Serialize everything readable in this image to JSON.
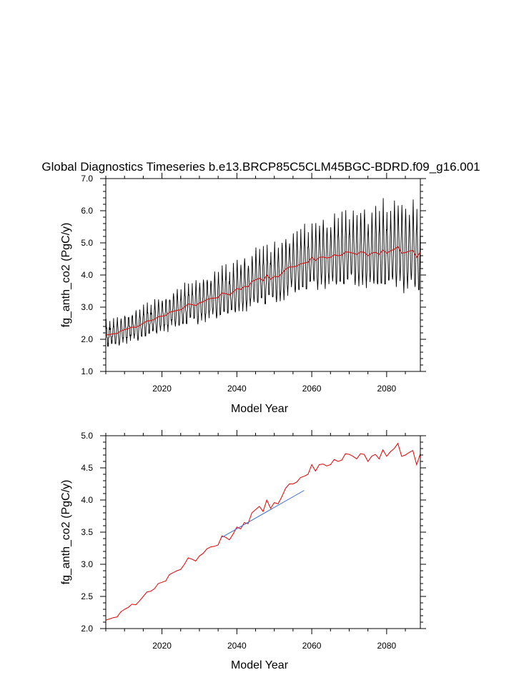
{
  "figure_title": "Global Diagnostics Timeseries b.e13.BRCP85C5CLM45BGC-BDRD.f09_g16.001",
  "colors": {
    "monthly": "#000000",
    "annual": "#e60000",
    "trend": "#3a6fd8",
    "axes": "#000000"
  },
  "chart_data": [
    {
      "type": "line",
      "title": "Global Diagnostics Timeseries b.e13.BRCP85C5CLM45BGC-BDRD.f09_g16.001",
      "xlabel": "Model Year",
      "ylabel": "fg_anth_co2 (PgC/y)",
      "xlim": [
        2005,
        2089
      ],
      "ylim": [
        1.0,
        7.0
      ],
      "x_ticks": [
        2020,
        2040,
        2060,
        2080
      ],
      "x_tick_labels": [
        "2020",
        "2040",
        "2060",
        "2080"
      ],
      "y_ticks": [
        1.0,
        2.0,
        3.0,
        4.0,
        5.0,
        6.0,
        7.0
      ],
      "y_tick_labels": [
        "1.0",
        "2.0",
        "3.0",
        "4.0",
        "5.0",
        "6.0",
        "7.0"
      ],
      "series": [
        {
          "name": "monthly",
          "kind": "seasonal-oscillation",
          "color": "#000000",
          "start_year": 2005,
          "end_year": 2089,
          "seasonal_amplitude": {
            "years": [
              2005,
              2020,
              2040,
              2060,
              2075,
              2089
            ],
            "amplitude": [
              0.3,
              0.4,
              0.62,
              0.78,
              0.95,
              1.1
            ]
          }
        },
        {
          "name": "annual mean",
          "color": "#e60000",
          "x": [
            2005,
            2006,
            2007,
            2008,
            2009,
            2010,
            2011,
            2012,
            2013,
            2014,
            2015,
            2016,
            2017,
            2018,
            2019,
            2020,
            2021,
            2022,
            2023,
            2024,
            2025,
            2026,
            2027,
            2028,
            2029,
            2030,
            2031,
            2032,
            2033,
            2034,
            2035,
            2036,
            2037,
            2038,
            2039,
            2040,
            2041,
            2042,
            2043,
            2044,
            2045,
            2046,
            2047,
            2048,
            2049,
            2050,
            2051,
            2052,
            2053,
            2054,
            2055,
            2056,
            2057,
            2058,
            2059,
            2060,
            2061,
            2062,
            2063,
            2064,
            2065,
            2066,
            2067,
            2068,
            2069,
            2070,
            2071,
            2072,
            2073,
            2074,
            2075,
            2076,
            2077,
            2078,
            2079,
            2080,
            2081,
            2082,
            2083,
            2084,
            2085,
            2086,
            2087,
            2088,
            2089
          ],
          "values": [
            2.13,
            2.15,
            2.17,
            2.18,
            2.26,
            2.3,
            2.33,
            2.38,
            2.37,
            2.43,
            2.5,
            2.57,
            2.58,
            2.62,
            2.7,
            2.72,
            2.74,
            2.84,
            2.87,
            2.9,
            2.92,
            3.0,
            3.1,
            3.08,
            3.05,
            3.13,
            3.17,
            3.24,
            3.27,
            3.28,
            3.3,
            3.44,
            3.42,
            3.38,
            3.47,
            3.58,
            3.55,
            3.65,
            3.63,
            3.8,
            3.85,
            3.9,
            3.82,
            4.0,
            3.87,
            3.96,
            3.94,
            4.05,
            4.18,
            4.25,
            4.25,
            4.28,
            4.35,
            4.37,
            4.4,
            4.55,
            4.45,
            4.55,
            4.56,
            4.53,
            4.55,
            4.63,
            4.6,
            4.62,
            4.72,
            4.71,
            4.68,
            4.64,
            4.72,
            4.71,
            4.6,
            4.68,
            4.71,
            4.64,
            4.78,
            4.68,
            4.75,
            4.8,
            4.88,
            4.68,
            4.7,
            4.74,
            4.77,
            4.55,
            4.72
          ]
        }
      ]
    },
    {
      "type": "line",
      "xlabel": "Model Year",
      "ylabel": "fg_anth_co2 (PgC/y)",
      "xlim": [
        2005,
        2089
      ],
      "ylim": [
        2.0,
        5.0
      ],
      "x_ticks": [
        2020,
        2040,
        2060,
        2080
      ],
      "x_tick_labels": [
        "2020",
        "2040",
        "2060",
        "2080"
      ],
      "y_ticks": [
        2.0,
        2.5,
        3.0,
        3.5,
        4.0,
        4.5,
        5.0
      ],
      "y_tick_labels": [
        "2.0",
        "2.5",
        "3.0",
        "3.5",
        "4.0",
        "4.5",
        "5.0"
      ],
      "series": [
        {
          "name": "annual mean",
          "color": "#e60000",
          "x": [
            2005,
            2006,
            2007,
            2008,
            2009,
            2010,
            2011,
            2012,
            2013,
            2014,
            2015,
            2016,
            2017,
            2018,
            2019,
            2020,
            2021,
            2022,
            2023,
            2024,
            2025,
            2026,
            2027,
            2028,
            2029,
            2030,
            2031,
            2032,
            2033,
            2034,
            2035,
            2036,
            2037,
            2038,
            2039,
            2040,
            2041,
            2042,
            2043,
            2044,
            2045,
            2046,
            2047,
            2048,
            2049,
            2050,
            2051,
            2052,
            2053,
            2054,
            2055,
            2056,
            2057,
            2058,
            2059,
            2060,
            2061,
            2062,
            2063,
            2064,
            2065,
            2066,
            2067,
            2068,
            2069,
            2070,
            2071,
            2072,
            2073,
            2074,
            2075,
            2076,
            2077,
            2078,
            2079,
            2080,
            2081,
            2082,
            2083,
            2084,
            2085,
            2086,
            2087,
            2088,
            2089
          ],
          "values": [
            2.13,
            2.15,
            2.17,
            2.18,
            2.26,
            2.3,
            2.33,
            2.38,
            2.37,
            2.43,
            2.5,
            2.57,
            2.58,
            2.62,
            2.7,
            2.72,
            2.74,
            2.84,
            2.87,
            2.9,
            2.92,
            3.0,
            3.1,
            3.08,
            3.05,
            3.13,
            3.17,
            3.24,
            3.27,
            3.28,
            3.3,
            3.44,
            3.42,
            3.38,
            3.47,
            3.58,
            3.55,
            3.65,
            3.63,
            3.8,
            3.85,
            3.9,
            3.82,
            4.0,
            3.87,
            3.96,
            3.94,
            4.05,
            4.18,
            4.25,
            4.25,
            4.28,
            4.35,
            4.37,
            4.4,
            4.55,
            4.45,
            4.55,
            4.56,
            4.53,
            4.55,
            4.63,
            4.6,
            4.62,
            4.72,
            4.71,
            4.68,
            4.64,
            4.72,
            4.71,
            4.6,
            4.68,
            4.71,
            4.64,
            4.78,
            4.68,
            4.75,
            4.8,
            4.88,
            4.68,
            4.7,
            4.74,
            4.77,
            4.55,
            4.72
          ]
        },
        {
          "name": "trend",
          "color": "#3a6fd8",
          "x": [
            2036,
            2058
          ],
          "values": [
            3.42,
            4.15
          ]
        }
      ]
    }
  ]
}
